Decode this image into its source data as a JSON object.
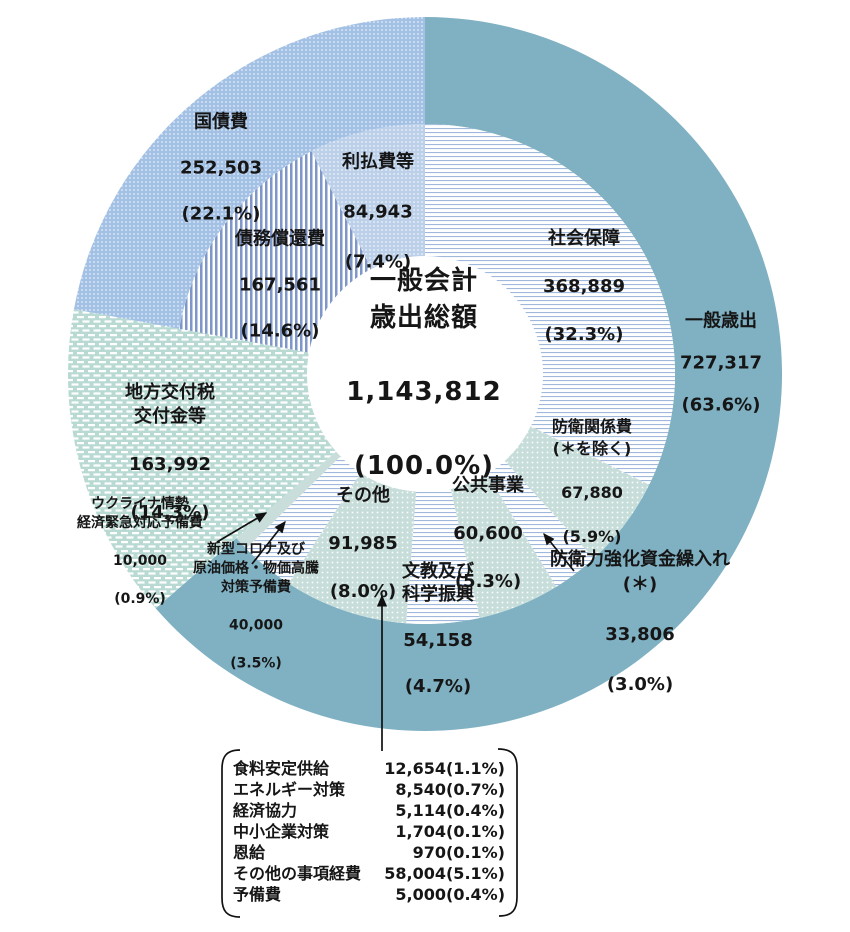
{
  "chart_data": {
    "type": "donut",
    "title": "一般会計歳出総額",
    "center": {
      "label": "一般会計\n歳出総額",
      "value": 1143812,
      "value_str": "1,143,812",
      "pct_str": "(100.0%)"
    },
    "geometry_note": "two-level donut, outer ring = major categories, inner ring = sub items, percentages of total, clockwise from top",
    "segments": [
      {
        "id": "ippan-saishutsu",
        "label": "一般歳出",
        "value": 727317,
        "value_str": "727,317",
        "pct": 63.6,
        "pct_str": "(63.6%)",
        "ring": "outer",
        "start_pct": 0,
        "end_pct": 63.6,
        "pattern": {
          "type": "solid",
          "bg": "#7FB1C3"
        }
      },
      {
        "id": "shakai-hosho",
        "label": "社会保障",
        "value": 368889,
        "value_str": "368,889",
        "pct": 32.3,
        "pct_str": "(32.3%)",
        "ring": "inner",
        "start_pct": 0,
        "end_pct": 32.3,
        "pattern": {
          "type": "hstripes",
          "bg": "#FFFFFF",
          "fg": "#9FB8DB",
          "pitch": 4,
          "line": 1.1
        }
      },
      {
        "id": "boei-kankeihi",
        "label": "防衛関係費\n(＊を除く)",
        "value": 67880,
        "value_str": "67,880",
        "pct": 5.9,
        "pct_str": "(5.9%)",
        "ring": "inner",
        "start_pct": 32.3,
        "end_pct": 38.2,
        "pattern": {
          "type": "dots",
          "bg": "#C6DDD9",
          "fg": "#FFFFFF",
          "pitch": 5,
          "dot": 1.6
        }
      },
      {
        "id": "boeiryoku-kyoka",
        "label": "防衛力強化資金繰入れ(＊)",
        "value": 33806,
        "value_str": "33,806",
        "pct": 3.0,
        "pct_str": "(3.0%)",
        "ring": "inner",
        "start_pct": 38.2,
        "end_pct": 41.2,
        "pattern": {
          "type": "hstripes",
          "bg": "#FFFFFF",
          "fg": "#9FB8DB",
          "pitch": 4,
          "line": 1.1
        }
      },
      {
        "id": "kokyo-jigyo",
        "label": "公共事業",
        "value": 60600,
        "value_str": "60,600",
        "pct": 5.3,
        "pct_str": "(5.3%)",
        "ring": "inner",
        "start_pct": 41.2,
        "end_pct": 46.5,
        "pattern": {
          "type": "dots",
          "bg": "#C6DDD9",
          "fg": "#FFFFFF",
          "pitch": 5,
          "dot": 1.6
        }
      },
      {
        "id": "bunkyo-kagaku",
        "label": "文教及び\n科学振興",
        "value": 54158,
        "value_str": "54,158",
        "pct": 4.7,
        "pct_str": "(4.7%)",
        "ring": "inner",
        "start_pct": 46.5,
        "end_pct": 51.2,
        "pattern": {
          "type": "hstripes",
          "bg": "#FFFFFF",
          "fg": "#9FB8DB",
          "pitch": 4,
          "line": 1.1
        }
      },
      {
        "id": "sonota",
        "label": "その他",
        "value": 91985,
        "value_str": "91,985",
        "pct": 8.0,
        "pct_str": "(8.0%)",
        "ring": "inner",
        "start_pct": 51.2,
        "end_pct": 59.2,
        "pattern": {
          "type": "dots",
          "bg": "#C6DDD9",
          "fg": "#FFFFFF",
          "pitch": 5,
          "dot": 1.6
        }
      },
      {
        "id": "corona-yobihi",
        "label": "新型コロナ及び\n原油価格・物価高騰\n対策予備費",
        "value": 40000,
        "value_str": "40,000",
        "pct": 3.5,
        "pct_str": "(3.5%)",
        "ring": "inner",
        "start_pct": 59.2,
        "end_pct": 62.7,
        "pattern": {
          "type": "hstripes",
          "bg": "#FFFFFF",
          "fg": "#9FB8DB",
          "pitch": 4,
          "line": 1.1
        }
      },
      {
        "id": "ukraine-yobihi",
        "label": "ウクライナ情勢\n経済緊急対応予備費",
        "value": 10000,
        "value_str": "10,000",
        "pct": 0.9,
        "pct_str": "(0.9%)",
        "ring": "inner",
        "start_pct": 62.7,
        "end_pct": 63.6,
        "pattern": {
          "type": "solid",
          "bg": "#C9DEDB"
        }
      },
      {
        "id": "chiho-kofuzei",
        "label": "地方交付税\n交付金等",
        "value": 163992,
        "value_str": "163,992",
        "pct": 14.3,
        "pct_str": "(14.3%)",
        "ring": "full",
        "start_pct": 63.6,
        "end_pct": 77.9,
        "pattern": {
          "type": "dashes",
          "bg": "#B9DAD2",
          "fg": "#FFFFFF"
        }
      },
      {
        "id": "kokusaihi",
        "label": "国債費",
        "value": 252503,
        "value_str": "252,503",
        "pct": 22.1,
        "pct_str": "(22.1%)",
        "ring": "outer",
        "start_pct": 77.9,
        "end_pct": 100,
        "pattern": {
          "type": "dots",
          "bg": "#A3C1E4",
          "fg": "#FFFFFF",
          "pitch": 4,
          "dot": 1.3
        }
      },
      {
        "id": "saimu-shokan",
        "label": "債務償還費",
        "value": 167561,
        "value_str": "167,561",
        "pct": 14.6,
        "pct_str": "(14.6%)",
        "ring": "inner",
        "start_pct": 77.9,
        "end_pct": 92.5,
        "pattern": {
          "type": "vstripes",
          "bg": "#FFFFFF",
          "fg": "#7E96C8",
          "pitch": 5,
          "line": 2.5
        }
      },
      {
        "id": "riharai-hito",
        "label": "利払費等",
        "value": 84943,
        "value_str": "84,943",
        "pct": 7.4,
        "pct_str": "(7.4%)",
        "ring": "inner",
        "start_pct": 92.5,
        "end_pct": 100,
        "pattern": {
          "type": "dots",
          "bg": "#BDD0EA",
          "fg": "#FFFFFF",
          "pitch": 4,
          "dot": 1.3
        }
      }
    ]
  },
  "breakdown": {
    "rows": [
      {
        "name": "食料安定供給",
        "value": 12654,
        "pct": 1.1,
        "value_str": "12,654(1.1%)"
      },
      {
        "name": "エネルギー対策",
        "value": 8540,
        "pct": 0.7,
        "value_str": "8,540(0.7%)"
      },
      {
        "name": "経済協力",
        "value": 5114,
        "pct": 0.4,
        "value_str": "5,114(0.4%)"
      },
      {
        "name": "中小企業対策",
        "value": 1704,
        "pct": 0.1,
        "value_str": "1,704(0.1%)"
      },
      {
        "name": "恩給",
        "value": 970,
        "pct": 0.1,
        "value_str": "970(0.1%)"
      },
      {
        "name": "その他の事項経費",
        "value": 58004,
        "pct": 5.1,
        "value_str": "58,004(5.1%)"
      },
      {
        "name": "予備費",
        "value": 5000,
        "pct": 0.4,
        "value_str": "5,000(0.4%)"
      }
    ]
  },
  "colors": {
    "solid_teal": "#7FB1C3",
    "dot_blue": "#A3C1E4",
    "dot_blue_light": "#BDD0EA",
    "dot_teal": "#C6DDD9",
    "dash_teal": "#B9DAD2",
    "stripe_blue": "#9FB8DB",
    "vstripe_blue": "#7E96C8",
    "plain_teal": "#C9DEDB",
    "text": "#161616"
  }
}
